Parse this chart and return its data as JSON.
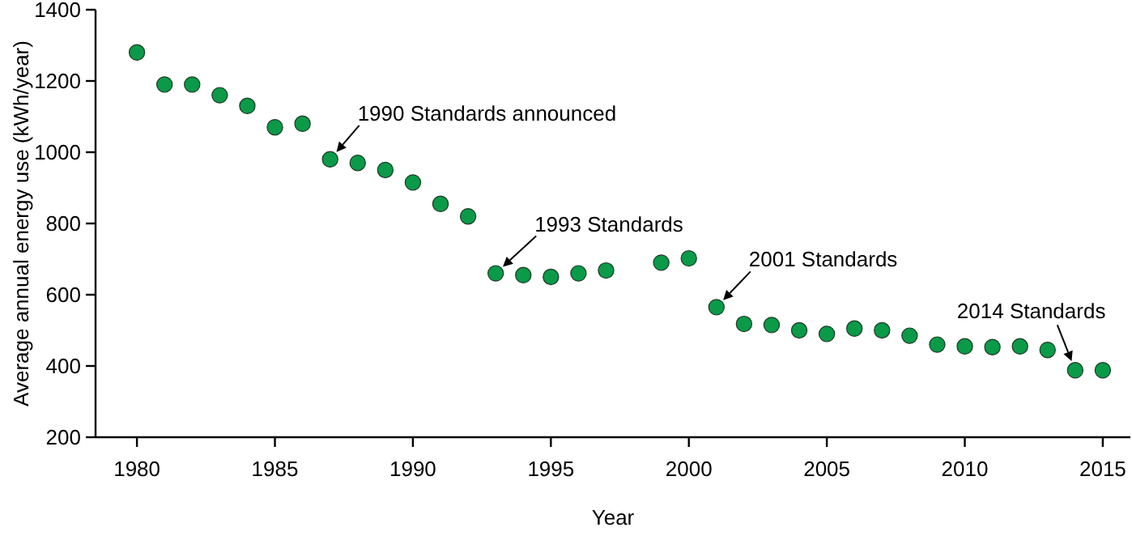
{
  "chart_data": {
    "type": "scatter",
    "xlabel": "Year",
    "ylabel": "Average annual energy use (kWh/year)",
    "x": [
      1980,
      1981,
      1982,
      1983,
      1984,
      1985,
      1986,
      1987,
      1988,
      1989,
      1990,
      1991,
      1992,
      1993,
      1994,
      1995,
      1996,
      1997,
      1999,
      2000,
      2001,
      2002,
      2003,
      2004,
      2005,
      2006,
      2007,
      2008,
      2009,
      2010,
      2011,
      2012,
      2013,
      2014,
      2015
    ],
    "series": [
      {
        "color": "#0a9a48",
        "values": [
          1280,
          1190,
          1190,
          1160,
          1130,
          1070,
          1080,
          980,
          970,
          950,
          915,
          855,
          820,
          660,
          655,
          650,
          660,
          668,
          690,
          702,
          565,
          518,
          515,
          500,
          490,
          505,
          500,
          485,
          460,
          455,
          453,
          455,
          445,
          388,
          388
        ]
      }
    ],
    "xlim": [
      1978.5,
      2016
    ],
    "xticks": [
      1980,
      1985,
      1990,
      1995,
      2000,
      2005,
      2010,
      2015
    ],
    "ylim": [
      200,
      1400
    ],
    "yticks": [
      200,
      400,
      600,
      800,
      1000,
      1200,
      1400
    ],
    "marker": "circle",
    "grid": false,
    "annotations": [
      {
        "text": "1990 Standards announced",
        "x": 1987,
        "y": 980
      },
      {
        "text": "1993 Standards",
        "x": 1993,
        "y": 660
      },
      {
        "text": "2001 Standards",
        "x": 2001,
        "y": 565
      },
      {
        "text": "2014 Standards",
        "x": 2014,
        "y": 388
      }
    ]
  }
}
